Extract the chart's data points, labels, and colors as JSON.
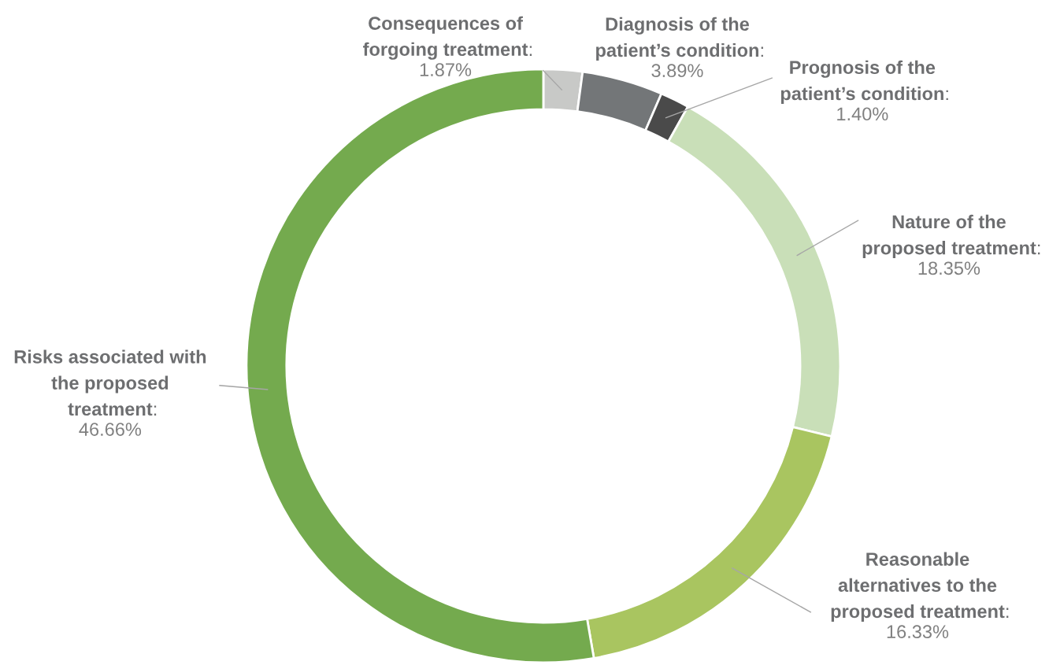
{
  "chart_data": {
    "type": "donut",
    "categories": [
      "Consequences of forgoing treatment",
      "Diagnosis of the patient’s condition",
      "Prognosis of the patient’s condition",
      "Nature of the proposed treatment",
      "Reasonable alternatives to the proposed treatment",
      "Risks associated with the proposed treatment"
    ],
    "values": [
      1.87,
      3.89,
      1.4,
      18.35,
      16.33,
      46.66
    ],
    "value_labels": [
      "1.87%",
      "3.89%",
      "1.40%",
      "18.35%",
      "16.33%",
      "46.66%"
    ],
    "colors": [
      "#c8c9c7",
      "#737678",
      "#4a4a4a",
      "#c9dfb8",
      "#a9c560",
      "#74aa4e"
    ],
    "annotations": [
      ":",
      ":",
      ":",
      ":",
      ":",
      ":"
    ],
    "legend": false
  }
}
